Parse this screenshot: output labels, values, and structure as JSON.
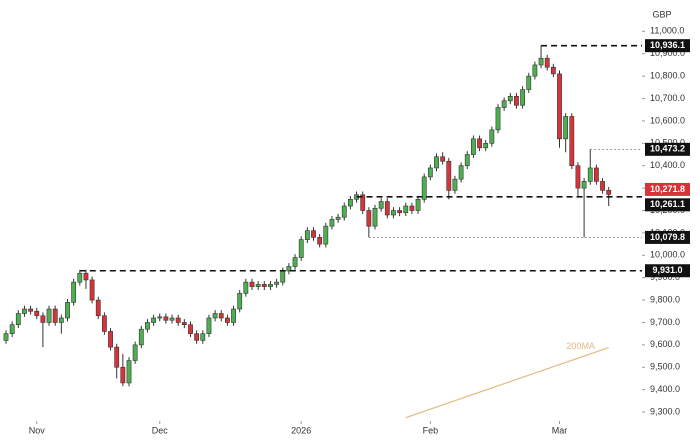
{
  "chart_data": {
    "type": "candlestick",
    "currency": "GBP",
    "ylim": [
      9260,
      11140
    ],
    "yticks": [
      {
        "value": 9300,
        "label": "9,300.0"
      },
      {
        "value": 9400,
        "label": "9,400.0"
      },
      {
        "value": 9500,
        "label": "9,500.0"
      },
      {
        "value": 9600,
        "label": "9,600.0"
      },
      {
        "value": 9700,
        "label": "9,700.0"
      },
      {
        "value": 9800,
        "label": "9,800.0"
      },
      {
        "value": 9900,
        "label": "9,900.0"
      },
      {
        "value": 10000,
        "label": "10,000.0"
      },
      {
        "value": 10100,
        "label": "10,100.0"
      },
      {
        "value": 10200,
        "label": "10,200.0"
      },
      {
        "value": 10300,
        "label": "10,300.0"
      },
      {
        "value": 10400,
        "label": "10,400.0"
      },
      {
        "value": 10500,
        "label": "10,500.0"
      },
      {
        "value": 10600,
        "label": "10,600.0"
      },
      {
        "value": 10700,
        "label": "10,700.0"
      },
      {
        "value": 10800,
        "label": "10,800.0"
      },
      {
        "value": 10900,
        "label": "10,900.0"
      },
      {
        "value": 11000,
        "label": "11,000.0"
      }
    ],
    "xticks": [
      {
        "value": 5,
        "label": "Nov"
      },
      {
        "value": 25,
        "label": "Dec"
      },
      {
        "value": 48,
        "label": "2026"
      },
      {
        "value": 69,
        "label": "Feb"
      },
      {
        "value": 90,
        "label": "Mar"
      }
    ],
    "up_color": "#4caf50",
    "down_color": "#d7343a",
    "ohlc": [
      [
        9620,
        9665,
        9605,
        9650
      ],
      [
        9650,
        9705,
        9635,
        9690
      ],
      [
        9690,
        9755,
        9675,
        9740
      ],
      [
        9740,
        9775,
        9725,
        9760
      ],
      [
        9760,
        9775,
        9735,
        9750
      ],
      [
        9750,
        9765,
        9715,
        9730
      ],
      [
        9730,
        9745,
        9590,
        9700
      ],
      [
        9700,
        9775,
        9685,
        9760
      ],
      [
        9760,
        9775,
        9685,
        9700
      ],
      [
        9700,
        9735,
        9650,
        9720
      ],
      [
        9720,
        9805,
        9705,
        9790
      ],
      [
        9790,
        9895,
        9775,
        9880
      ],
      [
        9880,
        9935,
        9865,
        9920
      ],
      [
        9920,
        9935,
        9850,
        9890
      ],
      [
        9890,
        9905,
        9785,
        9800
      ],
      [
        9800,
        9815,
        9715,
        9730
      ],
      [
        9730,
        9745,
        9645,
        9660
      ],
      [
        9660,
        9675,
        9575,
        9590
      ],
      [
        9590,
        9605,
        9450,
        9500
      ],
      [
        9500,
        9560,
        9415,
        9430
      ],
      [
        9430,
        9545,
        9415,
        9530
      ],
      [
        9530,
        9615,
        9515,
        9600
      ],
      [
        9600,
        9685,
        9585,
        9670
      ],
      [
        9670,
        9715,
        9655,
        9700
      ],
      [
        9700,
        9735,
        9685,
        9720
      ],
      [
        9720,
        9740,
        9705,
        9725
      ],
      [
        9725,
        9740,
        9695,
        9710
      ],
      [
        9710,
        9735,
        9695,
        9720
      ],
      [
        9720,
        9735,
        9685,
        9700
      ],
      [
        9700,
        9715,
        9675,
        9690
      ],
      [
        9690,
        9705,
        9635,
        9650
      ],
      [
        9650,
        9665,
        9605,
        9620
      ],
      [
        9620,
        9665,
        9605,
        9650
      ],
      [
        9650,
        9735,
        9635,
        9720
      ],
      [
        9720,
        9755,
        9705,
        9740
      ],
      [
        9740,
        9755,
        9705,
        9720
      ],
      [
        9720,
        9735,
        9685,
        9700
      ],
      [
        9700,
        9775,
        9685,
        9760
      ],
      [
        9760,
        9845,
        9745,
        9830
      ],
      [
        9830,
        9895,
        9815,
        9880
      ],
      [
        9880,
        9895,
        9845,
        9860
      ],
      [
        9860,
        9885,
        9845,
        9870
      ],
      [
        9870,
        9885,
        9845,
        9860
      ],
      [
        9860,
        9885,
        9845,
        9870
      ],
      [
        9870,
        9895,
        9855,
        9880
      ],
      [
        9880,
        9945,
        9865,
        9930
      ],
      [
        9930,
        9965,
        9915,
        9950
      ],
      [
        9950,
        10005,
        9935,
        9990
      ],
      [
        9990,
        10085,
        9975,
        10070
      ],
      [
        10070,
        10125,
        10055,
        10110
      ],
      [
        10110,
        10125,
        10065,
        10080
      ],
      [
        10080,
        10095,
        10035,
        10050
      ],
      [
        10050,
        10145,
        10035,
        10130
      ],
      [
        10130,
        10175,
        10115,
        10160
      ],
      [
        10160,
        10185,
        10145,
        10170
      ],
      [
        10170,
        10235,
        10155,
        10220
      ],
      [
        10220,
        10265,
        10205,
        10250
      ],
      [
        10250,
        10285,
        10235,
        10270
      ],
      [
        10270,
        10285,
        10185,
        10200
      ],
      [
        10200,
        10215,
        10080,
        10130
      ],
      [
        10130,
        10225,
        10115,
        10210
      ],
      [
        10210,
        10255,
        10195,
        10240
      ],
      [
        10240,
        10255,
        10165,
        10180
      ],
      [
        10180,
        10215,
        10165,
        10200
      ],
      [
        10200,
        10215,
        10175,
        10190
      ],
      [
        10190,
        10235,
        10175,
        10220
      ],
      [
        10220,
        10235,
        10185,
        10200
      ],
      [
        10200,
        10265,
        10185,
        10250
      ],
      [
        10250,
        10365,
        10235,
        10350
      ],
      [
        10350,
        10405,
        10335,
        10390
      ],
      [
        10390,
        10455,
        10375,
        10440
      ],
      [
        10440,
        10460,
        10405,
        10420
      ],
      [
        10420,
        10435,
        10250,
        10290
      ],
      [
        10290,
        10355,
        10275,
        10340
      ],
      [
        10340,
        10415,
        10325,
        10400
      ],
      [
        10400,
        10465,
        10385,
        10450
      ],
      [
        10450,
        10535,
        10435,
        10520
      ],
      [
        10520,
        10535,
        10465,
        10480
      ],
      [
        10480,
        10515,
        10465,
        10500
      ],
      [
        10500,
        10575,
        10485,
        10560
      ],
      [
        10560,
        10675,
        10545,
        10660
      ],
      [
        10660,
        10705,
        10645,
        10690
      ],
      [
        10690,
        10725,
        10675,
        10710
      ],
      [
        10710,
        10725,
        10655,
        10670
      ],
      [
        10670,
        10755,
        10655,
        10740
      ],
      [
        10740,
        10815,
        10725,
        10800
      ],
      [
        10800,
        10865,
        10785,
        10850
      ],
      [
        10850,
        10936.1,
        10835,
        10880
      ],
      [
        10880,
        10895,
        10825,
        10840
      ],
      [
        10840,
        10855,
        10795,
        10810
      ],
      [
        10810,
        10825,
        10480,
        10520
      ],
      [
        10520,
        10635,
        10460,
        10620
      ],
      [
        10620,
        10635,
        10385,
        10400
      ],
      [
        10400,
        10415,
        10260,
        10300
      ],
      [
        10300,
        10345,
        10079.8,
        10330
      ],
      [
        10330,
        10473.2,
        10315,
        10390
      ],
      [
        10390,
        10405,
        10315,
        10330
      ],
      [
        10330,
        10345,
        10275,
        10290
      ],
      [
        10290,
        10305,
        10220,
        10271.8
      ]
    ],
    "levels": [
      {
        "value": 10936.1,
        "label": "10,936.1",
        "style": "major"
      },
      {
        "value": 10473.2,
        "label": "10,473.2",
        "style": "minor"
      },
      {
        "value": 10271.8,
        "label": "10,271.8",
        "style": "current"
      },
      {
        "value": 10261.1,
        "label": "10,261.1",
        "style": "major"
      },
      {
        "value": 10079.8,
        "label": "10,079.8",
        "style": "minor"
      },
      {
        "value": 9931.0,
        "label": "9,931.0",
        "style": "major"
      }
    ],
    "ma": {
      "name": "200MA",
      "color": "#e3b97f",
      "x": [
        65,
        98
      ],
      "values": [
        9275,
        9588
      ]
    }
  }
}
